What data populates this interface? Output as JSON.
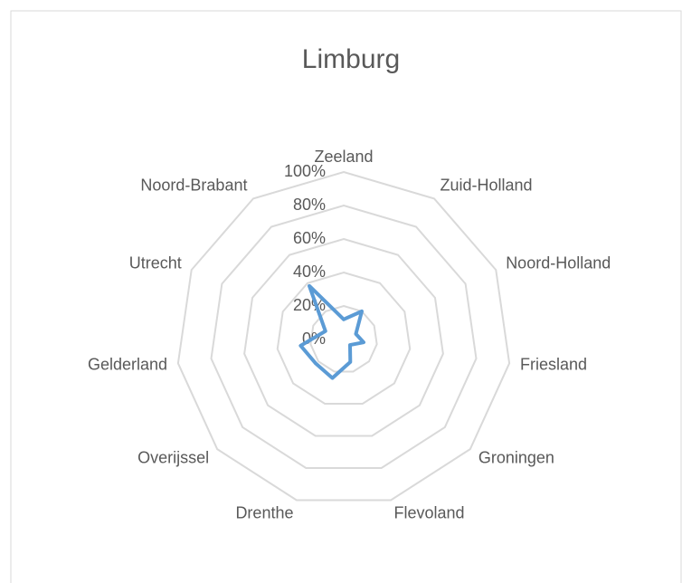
{
  "chart_data": {
    "type": "radar",
    "title": "Limburg",
    "categories": [
      "Zeeland",
      "Zuid-Holland",
      "Noord-Holland",
      "Friesland",
      "Groningen",
      "Flevoland",
      "Drenthe",
      "Overijssel",
      "Gelderland",
      "Utrecht",
      "Noord-Brabant"
    ],
    "series": [
      {
        "name": "Limburg",
        "color": "#5b9bd5",
        "values": [
          12,
          20,
          8,
          12,
          5,
          14,
          24,
          22,
          26,
          12,
          38
        ]
      }
    ],
    "ylim": [
      0,
      100
    ],
    "yticks": [
      {
        "value": 0,
        "label": "0%"
      },
      {
        "value": 20,
        "label": "20%"
      },
      {
        "value": 40,
        "label": "40%"
      },
      {
        "value": 60,
        "label": "60%"
      },
      {
        "value": 80,
        "label": "80%"
      },
      {
        "value": 100,
        "label": "100%"
      }
    ],
    "grid": true
  }
}
